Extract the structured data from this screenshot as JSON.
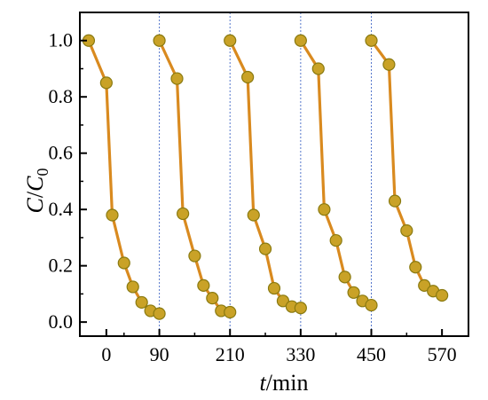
{
  "chart_data": {
    "type": "line",
    "xlabel": {
      "italic": "t",
      "rest": "/min"
    },
    "ylabel": {
      "main": "C",
      "slash": "/",
      "base": "C",
      "sub": "0"
    },
    "xlim": [
      -45,
      615
    ],
    "ylim": [
      -0.05,
      1.1
    ],
    "xticks": [
      0,
      90,
      210,
      330,
      450,
      570
    ],
    "yticks": [
      0.0,
      0.2,
      0.4,
      0.6,
      0.8,
      1.0
    ],
    "ytick_labels": [
      "0.0",
      "0.2",
      "0.4",
      "0.6",
      "0.8",
      "1.0"
    ],
    "xtick_labels": [
      "0",
      "90",
      "210",
      "330",
      "450",
      "570"
    ],
    "cycle_boundaries": [
      90,
      210,
      330,
      450
    ],
    "colors": {
      "line": "#d98a1f",
      "marker_fill": "#c9a227",
      "marker_edge": "#8a7a10",
      "boundary": "#5577cc"
    },
    "series": [
      {
        "x": [
          -30,
          0,
          10,
          30,
          45,
          60,
          75,
          90
        ],
        "y": [
          1.0,
          0.85,
          0.38,
          0.21,
          0.125,
          0.07,
          0.04,
          0.03
        ]
      },
      {
        "x": [
          90,
          120,
          130,
          150,
          165,
          180,
          195,
          210
        ],
        "y": [
          1.0,
          0.865,
          0.385,
          0.235,
          0.13,
          0.085,
          0.04,
          0.035
        ]
      },
      {
        "x": [
          210,
          240,
          250,
          270,
          285,
          300,
          315,
          330
        ],
        "y": [
          1.0,
          0.87,
          0.38,
          0.26,
          0.12,
          0.075,
          0.055,
          0.05
        ]
      },
      {
        "x": [
          330,
          360,
          370,
          390,
          405,
          420,
          435,
          450
        ],
        "y": [
          1.0,
          0.9,
          0.4,
          0.29,
          0.16,
          0.105,
          0.075,
          0.06
        ]
      },
      {
        "x": [
          450,
          480,
          490,
          510,
          525,
          540,
          555,
          570
        ],
        "y": [
          1.0,
          0.915,
          0.43,
          0.325,
          0.195,
          0.13,
          0.11,
          0.095
        ]
      }
    ]
  }
}
